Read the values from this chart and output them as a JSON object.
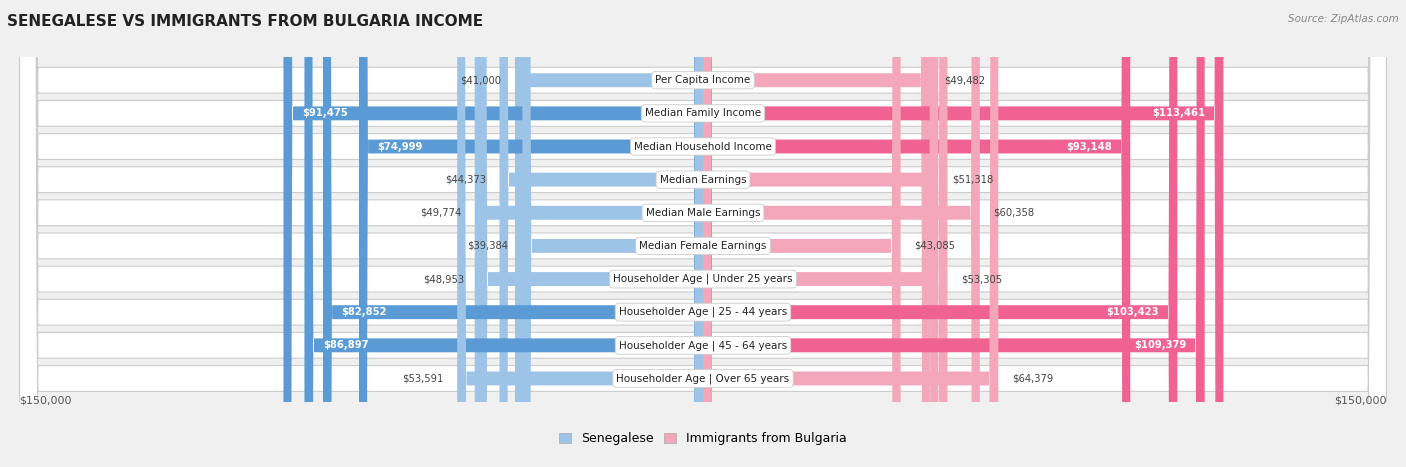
{
  "title": "SENEGALESE VS IMMIGRANTS FROM BULGARIA INCOME",
  "source": "Source: ZipAtlas.com",
  "categories": [
    "Per Capita Income",
    "Median Family Income",
    "Median Household Income",
    "Median Earnings",
    "Median Male Earnings",
    "Median Female Earnings",
    "Householder Age | Under 25 years",
    "Householder Age | 25 - 44 years",
    "Householder Age | 45 - 64 years",
    "Householder Age | Over 65 years"
  ],
  "senegalese": [
    41000,
    91475,
    74999,
    44373,
    49774,
    39384,
    48953,
    82852,
    86897,
    53591
  ],
  "bulgaria": [
    49482,
    113461,
    93148,
    51318,
    60358,
    43085,
    53305,
    103423,
    109379,
    64379
  ],
  "senegalese_labels": [
    "$41,000",
    "$91,475",
    "$74,999",
    "$44,373",
    "$49,774",
    "$39,384",
    "$48,953",
    "$82,852",
    "$86,897",
    "$53,591"
  ],
  "bulgaria_labels": [
    "$49,482",
    "$113,461",
    "$93,148",
    "$51,318",
    "$60,358",
    "$43,085",
    "$53,305",
    "$103,423",
    "$109,379",
    "$64,379"
  ],
  "color_senegalese_dark": "#5b9bd5",
  "color_senegalese_light": "#9dc3e6",
  "color_bulgaria_dark": "#f06292",
  "color_bulgaria_light": "#f4a7bb",
  "max_val": 150000,
  "xlim_label": "$150,000",
  "background_color": "#f0f0f0",
  "row_bg_color": "#ffffff",
  "legend_senegalese": "Senegalese",
  "legend_bulgaria": "Immigrants from Bulgaria",
  "sen_large_threshold": 65000,
  "bul_large_threshold": 65000
}
